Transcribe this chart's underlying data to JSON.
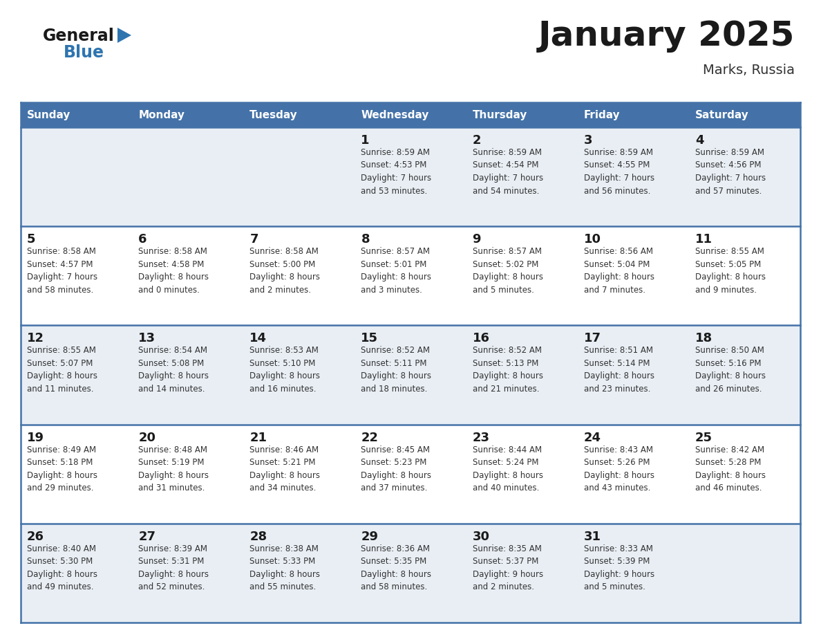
{
  "title": "January 2025",
  "subtitle": "Marks, Russia",
  "days_of_week": [
    "Sunday",
    "Monday",
    "Tuesday",
    "Wednesday",
    "Thursday",
    "Friday",
    "Saturday"
  ],
  "header_bg": "#4472a8",
  "header_text": "#ffffff",
  "border_color": "#4472a8",
  "day_num_color": "#1a1a1a",
  "cell_text_color": "#333333",
  "title_color": "#1a1a1a",
  "subtitle_color": "#333333",
  "blue_color": "#2e75b0",
  "row_bg_light": "#e8eef4",
  "row_bg_white": "#ffffff",
  "calendar_data": [
    [
      {
        "day": "",
        "info": ""
      },
      {
        "day": "",
        "info": ""
      },
      {
        "day": "",
        "info": ""
      },
      {
        "day": "1",
        "info": "Sunrise: 8:59 AM\nSunset: 4:53 PM\nDaylight: 7 hours\nand 53 minutes."
      },
      {
        "day": "2",
        "info": "Sunrise: 8:59 AM\nSunset: 4:54 PM\nDaylight: 7 hours\nand 54 minutes."
      },
      {
        "day": "3",
        "info": "Sunrise: 8:59 AM\nSunset: 4:55 PM\nDaylight: 7 hours\nand 56 minutes."
      },
      {
        "day": "4",
        "info": "Sunrise: 8:59 AM\nSunset: 4:56 PM\nDaylight: 7 hours\nand 57 minutes."
      }
    ],
    [
      {
        "day": "5",
        "info": "Sunrise: 8:58 AM\nSunset: 4:57 PM\nDaylight: 7 hours\nand 58 minutes."
      },
      {
        "day": "6",
        "info": "Sunrise: 8:58 AM\nSunset: 4:58 PM\nDaylight: 8 hours\nand 0 minutes."
      },
      {
        "day": "7",
        "info": "Sunrise: 8:58 AM\nSunset: 5:00 PM\nDaylight: 8 hours\nand 2 minutes."
      },
      {
        "day": "8",
        "info": "Sunrise: 8:57 AM\nSunset: 5:01 PM\nDaylight: 8 hours\nand 3 minutes."
      },
      {
        "day": "9",
        "info": "Sunrise: 8:57 AM\nSunset: 5:02 PM\nDaylight: 8 hours\nand 5 minutes."
      },
      {
        "day": "10",
        "info": "Sunrise: 8:56 AM\nSunset: 5:04 PM\nDaylight: 8 hours\nand 7 minutes."
      },
      {
        "day": "11",
        "info": "Sunrise: 8:55 AM\nSunset: 5:05 PM\nDaylight: 8 hours\nand 9 minutes."
      }
    ],
    [
      {
        "day": "12",
        "info": "Sunrise: 8:55 AM\nSunset: 5:07 PM\nDaylight: 8 hours\nand 11 minutes."
      },
      {
        "day": "13",
        "info": "Sunrise: 8:54 AM\nSunset: 5:08 PM\nDaylight: 8 hours\nand 14 minutes."
      },
      {
        "day": "14",
        "info": "Sunrise: 8:53 AM\nSunset: 5:10 PM\nDaylight: 8 hours\nand 16 minutes."
      },
      {
        "day": "15",
        "info": "Sunrise: 8:52 AM\nSunset: 5:11 PM\nDaylight: 8 hours\nand 18 minutes."
      },
      {
        "day": "16",
        "info": "Sunrise: 8:52 AM\nSunset: 5:13 PM\nDaylight: 8 hours\nand 21 minutes."
      },
      {
        "day": "17",
        "info": "Sunrise: 8:51 AM\nSunset: 5:14 PM\nDaylight: 8 hours\nand 23 minutes."
      },
      {
        "day": "18",
        "info": "Sunrise: 8:50 AM\nSunset: 5:16 PM\nDaylight: 8 hours\nand 26 minutes."
      }
    ],
    [
      {
        "day": "19",
        "info": "Sunrise: 8:49 AM\nSunset: 5:18 PM\nDaylight: 8 hours\nand 29 minutes."
      },
      {
        "day": "20",
        "info": "Sunrise: 8:48 AM\nSunset: 5:19 PM\nDaylight: 8 hours\nand 31 minutes."
      },
      {
        "day": "21",
        "info": "Sunrise: 8:46 AM\nSunset: 5:21 PM\nDaylight: 8 hours\nand 34 minutes."
      },
      {
        "day": "22",
        "info": "Sunrise: 8:45 AM\nSunset: 5:23 PM\nDaylight: 8 hours\nand 37 minutes."
      },
      {
        "day": "23",
        "info": "Sunrise: 8:44 AM\nSunset: 5:24 PM\nDaylight: 8 hours\nand 40 minutes."
      },
      {
        "day": "24",
        "info": "Sunrise: 8:43 AM\nSunset: 5:26 PM\nDaylight: 8 hours\nand 43 minutes."
      },
      {
        "day": "25",
        "info": "Sunrise: 8:42 AM\nSunset: 5:28 PM\nDaylight: 8 hours\nand 46 minutes."
      }
    ],
    [
      {
        "day": "26",
        "info": "Sunrise: 8:40 AM\nSunset: 5:30 PM\nDaylight: 8 hours\nand 49 minutes."
      },
      {
        "day": "27",
        "info": "Sunrise: 8:39 AM\nSunset: 5:31 PM\nDaylight: 8 hours\nand 52 minutes."
      },
      {
        "day": "28",
        "info": "Sunrise: 8:38 AM\nSunset: 5:33 PM\nDaylight: 8 hours\nand 55 minutes."
      },
      {
        "day": "29",
        "info": "Sunrise: 8:36 AM\nSunset: 5:35 PM\nDaylight: 8 hours\nand 58 minutes."
      },
      {
        "day": "30",
        "info": "Sunrise: 8:35 AM\nSunset: 5:37 PM\nDaylight: 9 hours\nand 2 minutes."
      },
      {
        "day": "31",
        "info": "Sunrise: 8:33 AM\nSunset: 5:39 PM\nDaylight: 9 hours\nand 5 minutes."
      },
      {
        "day": "",
        "info": ""
      }
    ]
  ]
}
